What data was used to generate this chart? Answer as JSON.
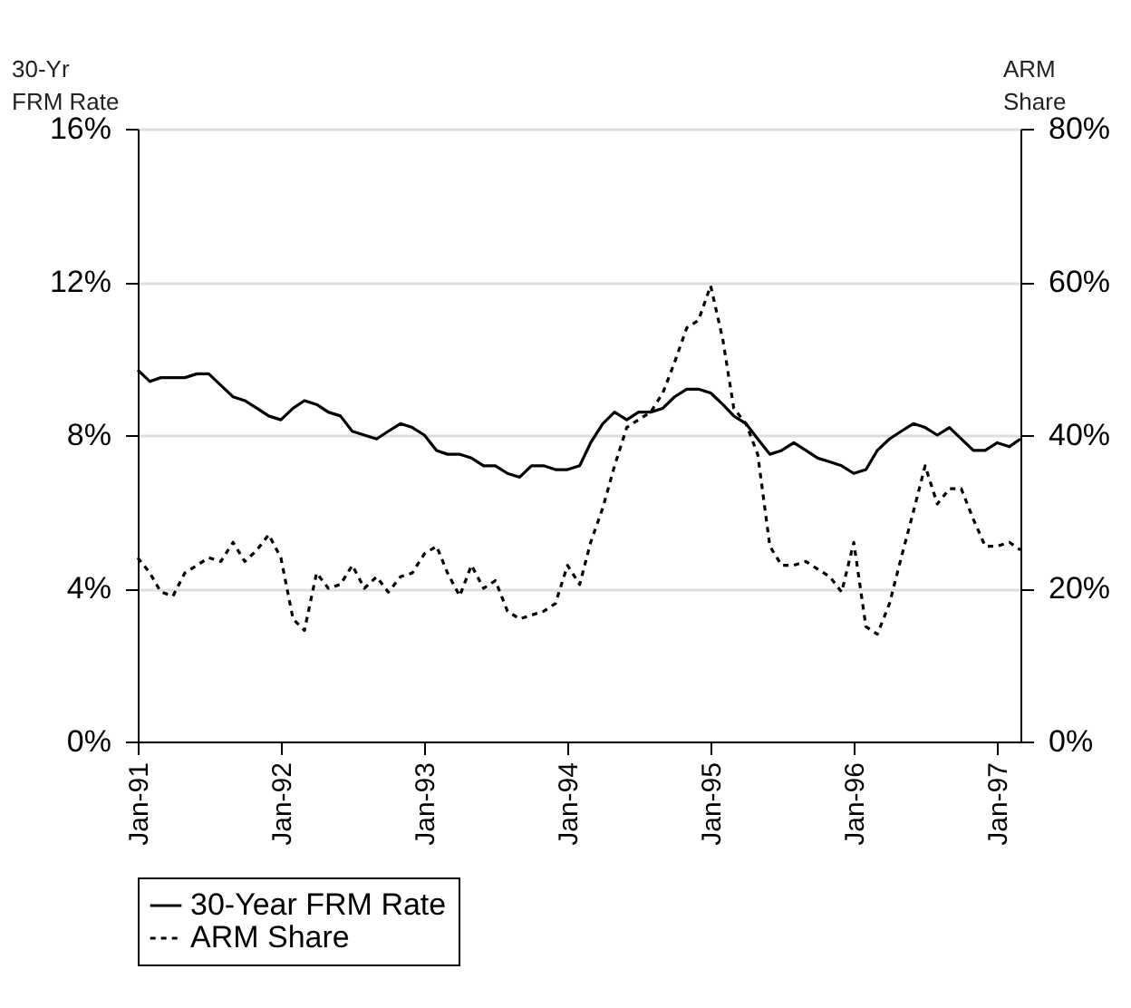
{
  "chart_data": {
    "type": "line",
    "ylabel": "30-Yr\nFRM Rate",
    "y2label": "ARM\nShare",
    "x": [
      "1991-01",
      "1991-02",
      "1991-03",
      "1991-04",
      "1991-05",
      "1991-06",
      "1991-07",
      "1991-08",
      "1991-09",
      "1991-10",
      "1991-11",
      "1991-12",
      "1992-01",
      "1992-02",
      "1992-03",
      "1992-04",
      "1992-05",
      "1992-06",
      "1992-07",
      "1992-08",
      "1992-09",
      "1992-10",
      "1992-11",
      "1992-12",
      "1993-01",
      "1993-02",
      "1993-03",
      "1993-04",
      "1993-05",
      "1993-06",
      "1993-07",
      "1993-08",
      "1993-09",
      "1993-10",
      "1993-11",
      "1993-12",
      "1994-01",
      "1994-02",
      "1994-03",
      "1994-04",
      "1994-05",
      "1994-06",
      "1994-07",
      "1994-08",
      "1994-09",
      "1994-10",
      "1994-11",
      "1994-12",
      "1995-01",
      "1995-02",
      "1995-03",
      "1995-04",
      "1995-05",
      "1995-06",
      "1995-07",
      "1995-08",
      "1995-09",
      "1995-10",
      "1995-11",
      "1995-12",
      "1996-01",
      "1996-02",
      "1996-03",
      "1996-04",
      "1996-05",
      "1996-06",
      "1996-07",
      "1996-08",
      "1996-09",
      "1996-10",
      "1996-11",
      "1996-12",
      "1997-01",
      "1997-02",
      "1997-03"
    ],
    "series": [
      {
        "name": "30-Year FRM Rate",
        "color": "#000000",
        "line_style": "solid",
        "values": [
          9.7,
          9.4,
          9.5,
          9.5,
          9.5,
          9.6,
          9.6,
          9.3,
          9.0,
          8.9,
          8.7,
          8.5,
          8.4,
          8.7,
          8.9,
          8.8,
          8.6,
          8.5,
          8.1,
          8.0,
          7.9,
          8.1,
          8.3,
          8.2,
          8.0,
          7.6,
          7.5,
          7.5,
          7.4,
          7.2,
          7.2,
          7.0,
          6.9,
          7.2,
          7.2,
          7.1,
          7.1,
          7.2,
          7.8,
          8.3,
          8.6,
          8.4,
          8.6,
          8.6,
          8.7,
          9.0,
          9.2,
          9.2,
          9.1,
          8.8,
          8.5,
          8.3,
          7.9,
          7.5,
          7.6,
          7.8,
          7.6,
          7.4,
          7.3,
          7.2,
          7.0,
          7.1,
          7.6,
          7.9,
          8.1,
          8.3,
          8.2,
          8.0,
          8.2,
          7.9,
          7.6,
          7.6,
          7.8,
          7.7,
          7.9
        ]
      },
      {
        "name": "ARM Share",
        "color": "#000000",
        "line_style": "dashed",
        "axis": "y2",
        "values": [
          24,
          22,
          19.5,
          19,
          22,
          23,
          24,
          23.5,
          26,
          23.5,
          25,
          27,
          24,
          16,
          14.5,
          22,
          20,
          20.5,
          23,
          20,
          21.5,
          19.5,
          21.5,
          22,
          24.5,
          25.5,
          22,
          19,
          23,
          20,
          21,
          17,
          16,
          16.5,
          17,
          18,
          23,
          20.5,
          26,
          30.5,
          36,
          41,
          42,
          43,
          45.5,
          49.5,
          54,
          55,
          59.5,
          52.5,
          43.5,
          41.5,
          37.5,
          25.5,
          23,
          23,
          23.5,
          22.5,
          21.5,
          19.5,
          26,
          15,
          14,
          18,
          24,
          30,
          36,
          31,
          33,
          33,
          29,
          25.5,
          25.5,
          26,
          25
        ]
      }
    ],
    "xlim": [
      "1991-01",
      "1997-03"
    ],
    "xticks": [
      {
        "value": "1991-01",
        "label": "Jan-91"
      },
      {
        "value": "1992-01",
        "label": "Jan-92"
      },
      {
        "value": "1993-01",
        "label": "Jan-93"
      },
      {
        "value": "1994-01",
        "label": "Jan-94"
      },
      {
        "value": "1995-01",
        "label": "Jan-95"
      },
      {
        "value": "1996-01",
        "label": "Jan-96"
      },
      {
        "value": "1997-01",
        "label": "Jan-97"
      }
    ],
    "ylim": [
      0,
      16
    ],
    "yticks": [
      {
        "value": 0,
        "label": "0%"
      },
      {
        "value": 4,
        "label": "4%"
      },
      {
        "value": 8,
        "label": "8%"
      },
      {
        "value": 12,
        "label": "12%"
      },
      {
        "value": 16,
        "label": "16%"
      }
    ],
    "y2lim": [
      0,
      80
    ],
    "y2ticks": [
      {
        "value": 0,
        "label": "0%"
      },
      {
        "value": 20,
        "label": "20%"
      },
      {
        "value": 40,
        "label": "40%"
      },
      {
        "value": 60,
        "label": "60%"
      },
      {
        "value": 80,
        "label": "80%"
      }
    ],
    "grid": "y",
    "legend": "bottom"
  }
}
